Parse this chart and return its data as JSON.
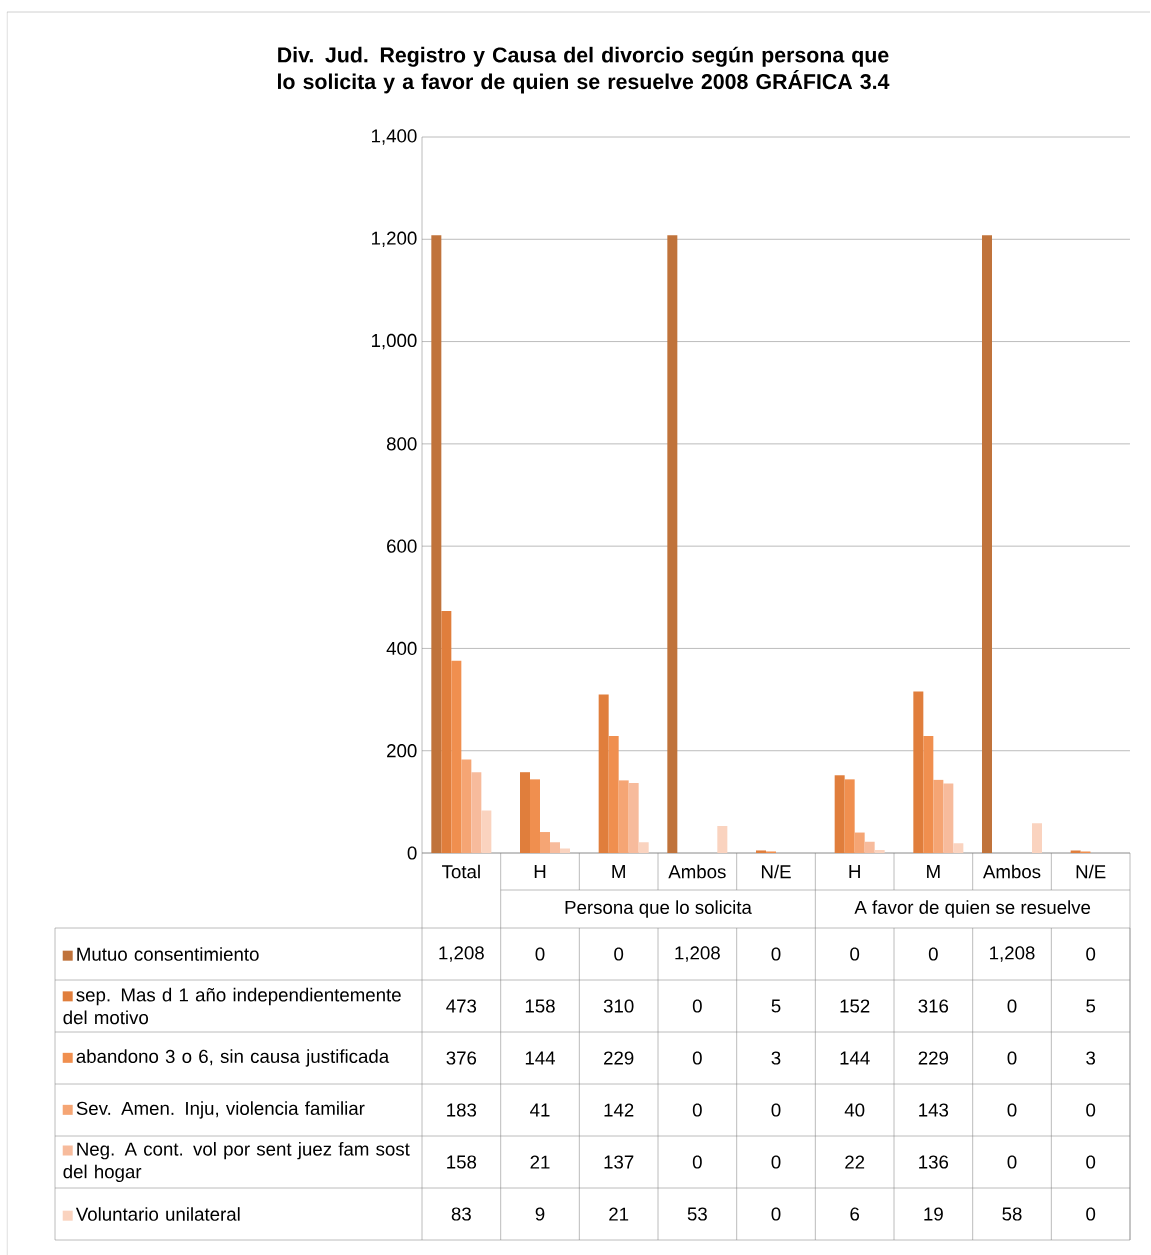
{
  "chart_data": {
    "type": "bar",
    "title": "Div. Jud.  Registro y Causa del divorcio según persona que lo solicita y a favor de quien se resuelve 2008 GRÁFICA 3.4",
    "categories": [
      "Total",
      "H",
      "M",
      "Ambos",
      "N/E",
      "H",
      "M",
      "Ambos",
      "N/E"
    ],
    "annotations": [
      "Persona que lo solicita",
      "A favor de quien se resuelve"
    ],
    "series": [
      {
        "name": "Mutuo consentimiento",
        "color": "#c0733b",
        "values": [
          1208,
          0,
          0,
          1208,
          0,
          0,
          0,
          1208,
          0
        ],
        "value_labels": [
          "1,208",
          "0",
          "0",
          "1,208",
          "0",
          "0",
          "0",
          "1,208",
          "0"
        ]
      },
      {
        "name": "sep. Mas d 1 año independientemente del motivo",
        "color": "#e07e3c",
        "values": [
          473,
          158,
          310,
          0,
          5,
          152,
          316,
          0,
          5
        ],
        "value_labels": [
          "473",
          "158",
          "310",
          "0",
          "5",
          "152",
          "316",
          "0",
          "5"
        ]
      },
      {
        "name": "abandono 3 o 6, sin causa justificada",
        "color": "#f08f4f",
        "values": [
          376,
          144,
          229,
          0,
          3,
          144,
          229,
          0,
          3
        ],
        "value_labels": [
          "376",
          "144",
          "229",
          "0",
          "3",
          "144",
          "229",
          "0",
          "3"
        ]
      },
      {
        "name": "Sev. Amen. Inju, violencia familiar",
        "color": "#f5a574",
        "values": [
          183,
          41,
          142,
          0,
          0,
          40,
          143,
          0,
          0
        ],
        "value_labels": [
          "183",
          "41",
          "142",
          "0",
          "0",
          "40",
          "143",
          "0",
          "0"
        ]
      },
      {
        "name": "Neg. A cont. vol por sent  juez fam sost del hogar",
        "color": "#f7bb9c",
        "values": [
          158,
          21,
          137,
          0,
          0,
          22,
          136,
          0,
          0
        ],
        "value_labels": [
          "158",
          "21",
          "137",
          "0",
          "0",
          "22",
          "136",
          "0",
          "0"
        ]
      },
      {
        "name": "Voluntario unilateral",
        "color": "#fad3bf",
        "values": [
          83,
          9,
          21,
          53,
          0,
          6,
          19,
          58,
          0
        ],
        "value_labels": [
          "83",
          "9",
          "21",
          "53",
          "0",
          "6",
          "19",
          "58",
          "0"
        ]
      }
    ],
    "ylim": [
      0,
      1400
    ],
    "yticks": [
      {
        "value": 0,
        "label": "0"
      },
      {
        "value": 200,
        "label": "200"
      },
      {
        "value": 400,
        "label": "400"
      },
      {
        "value": 600,
        "label": "600"
      },
      {
        "value": 800,
        "label": "800"
      },
      {
        "value": 1000,
        "label": "1,000"
      },
      {
        "value": 1200,
        "label": "1,200"
      },
      {
        "value": 1400,
        "label": "1,400"
      }
    ],
    "grid": "y",
    "legend": "bottom"
  }
}
